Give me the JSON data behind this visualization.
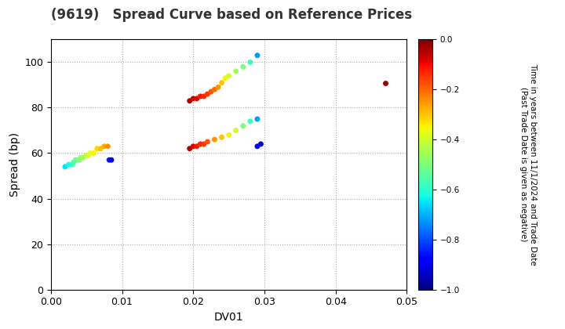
{
  "title": "(9619)   Spread Curve based on Reference Prices",
  "xlabel": "DV01",
  "ylabel": "Spread (bp)",
  "xlim": [
    0.0,
    0.05
  ],
  "ylim": [
    0,
    110
  ],
  "xticks": [
    0.0,
    0.01,
    0.02,
    0.03,
    0.04,
    0.05
  ],
  "yticks": [
    0,
    20,
    40,
    60,
    80,
    100
  ],
  "colorbar_label_line1": "Time in years between 11/1/2024 and Trade Date",
  "colorbar_label_line2": "(Past Trade Date is given as negative)",
  "clim_min": -1.0,
  "clim_max": 0.0,
  "cticks": [
    0.0,
    -0.2,
    -0.4,
    -0.6,
    -0.8,
    -1.0
  ],
  "cluster1": {
    "dv01": [
      0.002,
      0.0025,
      0.003,
      0.0032,
      0.0035,
      0.004,
      0.0042,
      0.0045,
      0.005,
      0.0052,
      0.0055,
      0.006,
      0.0065,
      0.007,
      0.0075,
      0.008
    ],
    "spread": [
      54,
      55,
      55,
      56,
      57,
      57,
      58,
      58,
      59,
      59,
      60,
      60,
      62,
      62,
      63,
      63
    ],
    "time": [
      -0.65,
      -0.62,
      -0.58,
      -0.55,
      -0.52,
      -0.5,
      -0.47,
      -0.45,
      -0.42,
      -0.4,
      -0.37,
      -0.35,
      -0.32,
      -0.3,
      -0.27,
      -0.25
    ]
  },
  "cluster1b": {
    "dv01": [
      0.0082,
      0.0085
    ],
    "spread": [
      57,
      57
    ],
    "time": [
      -0.85,
      -0.9
    ]
  },
  "cluster2_upper": {
    "dv01": [
      0.0195,
      0.02,
      0.0205,
      0.021,
      0.0215,
      0.022,
      0.0225,
      0.023,
      0.0235,
      0.024,
      0.0245,
      0.025,
      0.026,
      0.027,
      0.028,
      0.029
    ],
    "spread": [
      83,
      84,
      84,
      85,
      85,
      86,
      87,
      88,
      89,
      91,
      93,
      94,
      96,
      98,
      100,
      103
    ],
    "time": [
      -0.05,
      -0.07,
      -0.09,
      -0.11,
      -0.13,
      -0.15,
      -0.18,
      -0.21,
      -0.25,
      -0.3,
      -0.35,
      -0.4,
      -0.45,
      -0.5,
      -0.58,
      -0.72
    ]
  },
  "cluster2_lower": {
    "dv01": [
      0.0195,
      0.02,
      0.0205,
      0.021,
      0.0215,
      0.022,
      0.023,
      0.024,
      0.025,
      0.026,
      0.027,
      0.028,
      0.029
    ],
    "spread": [
      62,
      63,
      63,
      64,
      64,
      65,
      66,
      67,
      68,
      70,
      72,
      74,
      75
    ],
    "time": [
      -0.05,
      -0.08,
      -0.11,
      -0.13,
      -0.15,
      -0.18,
      -0.25,
      -0.3,
      -0.35,
      -0.4,
      -0.5,
      -0.58,
      -0.72
    ]
  },
  "cluster2_isolated": {
    "dv01": [
      0.029,
      0.0295
    ],
    "spread": [
      63,
      64
    ],
    "time": [
      -0.88,
      -0.93
    ]
  },
  "cluster3": {
    "dv01": [
      0.047
    ],
    "spread": [
      91
    ],
    "time": [
      -0.03
    ]
  },
  "marker_size": 25,
  "background_color": "#ffffff",
  "grid_color": "#aaaaaa",
  "title_fontsize": 12,
  "axis_fontsize": 10,
  "tick_fontsize": 9,
  "cbar_fontsize": 7.5
}
